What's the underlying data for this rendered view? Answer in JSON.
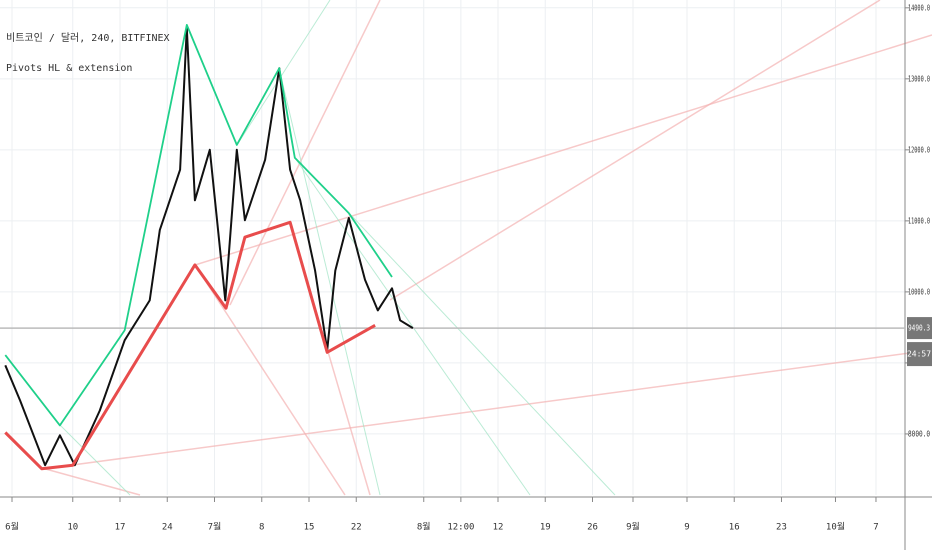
{
  "chart_data": {
    "type": "line",
    "title": "비트코인 / 달러, 240, BITFINEX",
    "subtitle": "Pivots HL & extension",
    "xlim": [
      -1.78,
      132.3
    ],
    "ylim": [
      7140,
      14110
    ],
    "grid": true,
    "xticks": [
      {
        "value": 0,
        "label": "6월"
      },
      {
        "value": 9,
        "label": "10"
      },
      {
        "value": 16,
        "label": "17"
      },
      {
        "value": 23,
        "label": "24"
      },
      {
        "value": 30,
        "label": "7월"
      },
      {
        "value": 37,
        "label": "8"
      },
      {
        "value": 44,
        "label": "15"
      },
      {
        "value": 51,
        "label": "22"
      },
      {
        "value": 61,
        "label": "8월"
      },
      {
        "value": 66.5,
        "label": "12:00"
      },
      {
        "value": 72,
        "label": "12"
      },
      {
        "value": 79,
        "label": "19"
      },
      {
        "value": 86,
        "label": "26"
      },
      {
        "value": 92,
        "label": "9월"
      },
      {
        "value": 100,
        "label": "9"
      },
      {
        "value": 107,
        "label": "16"
      },
      {
        "value": 114,
        "label": "23"
      },
      {
        "value": 122,
        "label": "10월"
      },
      {
        "value": 128,
        "label": "7"
      }
    ],
    "yticks": [
      {
        "value": 8000,
        "label": "8000.0"
      },
      {
        "value": 9000,
        "label": "9000.0"
      },
      {
        "value": 10000,
        "label": "10000.0"
      },
      {
        "value": 11000,
        "label": "11000.0"
      },
      {
        "value": 12000,
        "label": "12000.0"
      },
      {
        "value": 13000,
        "label": "13000.0"
      },
      {
        "value": 14000,
        "label": "14000.0"
      }
    ],
    "last_price": 9490.3,
    "countdown": "24:57",
    "series": [
      {
        "name": "Price",
        "color": "#111111",
        "x": [
          -1,
          1.2,
          4.9,
          7.1,
          9.3,
          13,
          16.7,
          20.4,
          21.9,
          24.9,
          25.9,
          27.1,
          29.3,
          31.6,
          33.3,
          34.5,
          37.5,
          39.6,
          41.2,
          42.7,
          44.9,
          46.7,
          47.9,
          49.9,
          52.3,
          54.2,
          56.3,
          57.5,
          59.4
        ],
        "values": [
          8966,
          8470,
          7560,
          7980,
          7560,
          8330,
          9320,
          9880,
          10870,
          11720,
          13720,
          11290,
          12000,
          9880,
          12000,
          11010,
          11860,
          13150,
          11720,
          11290,
          10300,
          9180,
          10300,
          11040,
          10170,
          9740,
          10050,
          9600,
          9490
        ]
      },
      {
        "name": "Pivot highs",
        "color": "#1fd08a",
        "x": [
          -1,
          7.1,
          16.7,
          25.9,
          33.3,
          39.6,
          41.9,
          49.9,
          56.3
        ],
        "values": [
          9110,
          8120,
          9460,
          13760,
          12070,
          13150,
          11890,
          11110,
          10210
        ]
      },
      {
        "name": "Pivot lows",
        "color": "#e84c4c",
        "x": [
          -1,
          4.4,
          9,
          27.1,
          31.7,
          34.5,
          41.2,
          46.7,
          53.8
        ],
        "values": [
          8020,
          7510,
          7560,
          10380,
          9770,
          10770,
          10980,
          9150,
          9530
        ]
      }
    ]
  }
}
